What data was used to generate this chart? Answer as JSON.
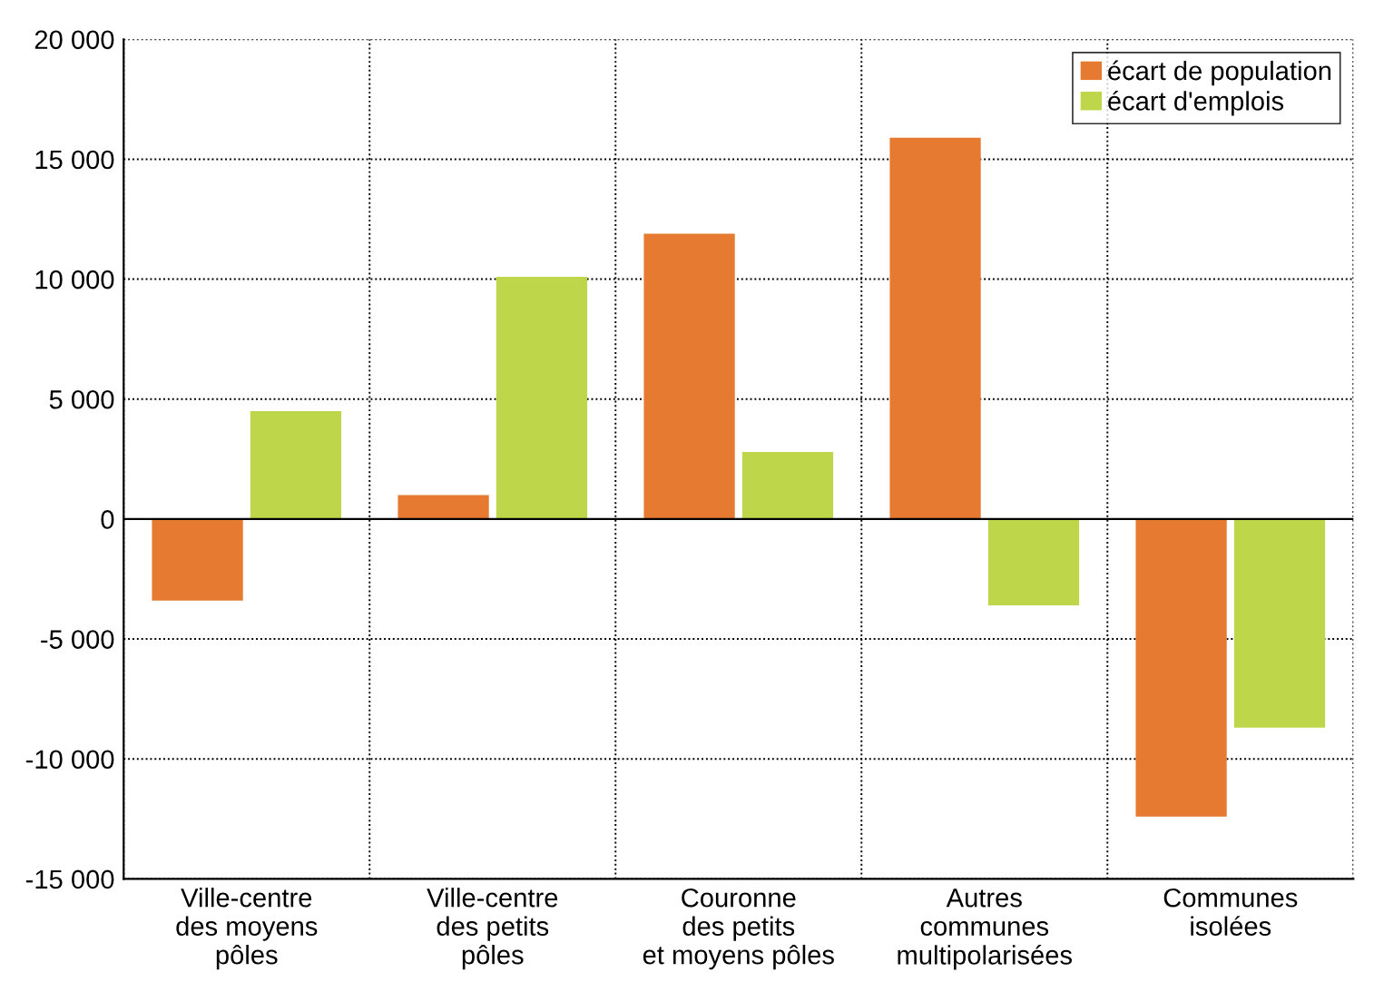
{
  "chart_data": {
    "type": "bar",
    "categories": [
      "Ville-centre\ndes moyens\npôles",
      "Ville-centre\ndes petits\npôles",
      "Couronne\ndes petits\net moyens pôles",
      "Autres\ncommunes\nmultipolarisées",
      "Communes\nisolées"
    ],
    "series": [
      {
        "name": "écart de population",
        "color": "#e57a30",
        "values": [
          -3400,
          1000,
          11900,
          15900,
          -12400
        ]
      },
      {
        "name": "écart d'emplois",
        "color": "#bed74a",
        "values": [
          4500,
          10100,
          2800,
          -3600,
          -8700
        ]
      }
    ],
    "ylim": [
      -15000,
      20000
    ],
    "yticks": [
      {
        "value": -15000,
        "label": "-15 000"
      },
      {
        "value": -10000,
        "label": "-10 000"
      },
      {
        "value": -5000,
        "label": "-5 000"
      },
      0,
      {
        "value": 5000,
        "label": "5 000"
      },
      {
        "value": 10000,
        "label": "10 000"
      },
      {
        "value": 15000,
        "label": "15 000"
      },
      {
        "value": 20000,
        "label": "20 000"
      }
    ],
    "ref_lines": [
      {
        "axis": "y",
        "value": 0,
        "color": "#000000",
        "line_style": "solid"
      }
    ],
    "grid": true,
    "legend": "top right"
  }
}
